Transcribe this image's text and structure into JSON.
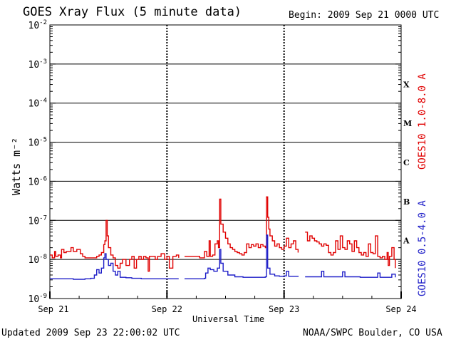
{
  "header": {
    "title": "GOES Xray Flux (5 minute data)",
    "begin": "Begin:  2009 Sep 21 0000 UTC"
  },
  "footer": {
    "updated": "Updated 2009 Sep 23 22:00:02 UTC",
    "credit": "NOAA/SWPC Boulder, CO USA"
  },
  "colors": {
    "long": "#e00000",
    "short": "#1e1ec8"
  },
  "chart_data": {
    "type": "line",
    "title": "GOES Xray Flux (5 minute data)",
    "xlabel": "Universal Time",
    "ylabel": "Watts m⁻²",
    "yscale": "log",
    "ylim": [
      1e-09,
      0.01
    ],
    "xlim": [
      0,
      3
    ],
    "x_units": "days since 2009 Sep 21 0000 UTC",
    "x_ticks": [
      {
        "value": 0,
        "label": "Sep 21"
      },
      {
        "value": 1,
        "label": "Sep 22"
      },
      {
        "value": 2,
        "label": "Sep 23"
      },
      {
        "value": 3,
        "label": "Sep 24"
      }
    ],
    "y_ticks": [
      {
        "value": 1e-09,
        "base": "10",
        "exp": "-9"
      },
      {
        "value": 1e-08,
        "base": "10",
        "exp": "-8"
      },
      {
        "value": 1e-07,
        "base": "10",
        "exp": "-7"
      },
      {
        "value": 1e-06,
        "base": "10",
        "exp": "-6"
      },
      {
        "value": 1e-05,
        "base": "10",
        "exp": "-5"
      },
      {
        "value": 0.0001,
        "base": "10",
        "exp": "-4"
      },
      {
        "value": 0.001,
        "base": "10",
        "exp": "-3"
      },
      {
        "value": 0.01,
        "base": "10",
        "exp": "-2"
      }
    ],
    "class_labels": [
      {
        "label": "A",
        "lower": 1e-08
      },
      {
        "label": "B",
        "lower": 1e-07
      },
      {
        "label": "C",
        "lower": 1e-06
      },
      {
        "label": "M",
        "lower": 1e-05
      },
      {
        "label": "X",
        "lower": 0.0001
      }
    ],
    "grid": true,
    "series": [
      {
        "name": "GOES10 1.0-8.0 A",
        "color": "#e00000",
        "segments": [
          [
            [
              0.0,
              1.3e-08
            ],
            [
              0.02,
              1.1e-08
            ],
            [
              0.04,
              1.6e-08
            ],
            [
              0.05,
              1.2e-08
            ],
            [
              0.07,
              1.3e-08
            ],
            [
              0.09,
              1.1e-08
            ],
            [
              0.1,
              1.8e-08
            ],
            [
              0.12,
              1.5e-08
            ],
            [
              0.14,
              1.6e-08
            ],
            [
              0.16,
              1.6e-08
            ],
            [
              0.18,
              2e-08
            ],
            [
              0.2,
              1.6e-08
            ],
            [
              0.23,
              1.8e-08
            ],
            [
              0.26,
              1.4e-08
            ],
            [
              0.28,
              1.2e-08
            ],
            [
              0.3,
              1.1e-08
            ],
            [
              0.35,
              1.1e-08
            ],
            [
              0.4,
              1.2e-08
            ],
            [
              0.42,
              1.3e-08
            ],
            [
              0.44,
              1.5e-08
            ],
            [
              0.46,
              2.4e-08
            ],
            [
              0.47,
              3e-08
            ],
            [
              0.48,
              1e-07
            ],
            [
              0.49,
              4e-08
            ],
            [
              0.5,
              2e-08
            ],
            [
              0.52,
              1.3e-08
            ],
            [
              0.54,
              1.1e-08
            ],
            [
              0.56,
              7e-09
            ],
            [
              0.58,
              6e-09
            ],
            [
              0.6,
              8e-09
            ],
            [
              0.62,
              1e-08
            ],
            [
              0.65,
              7e-09
            ],
            [
              0.68,
              1e-08
            ],
            [
              0.7,
              1.2e-08
            ],
            [
              0.72,
              6e-09
            ],
            [
              0.74,
              1e-08
            ],
            [
              0.76,
              1.2e-08
            ],
            [
              0.78,
              1e-08
            ],
            [
              0.8,
              1.2e-08
            ],
            [
              0.82,
              1.1e-08
            ],
            [
              0.84,
              5e-09
            ],
            [
              0.85,
              1.2e-08
            ],
            [
              0.88,
              1.2e-08
            ],
            [
              0.9,
              1e-08
            ],
            [
              0.92,
              1.2e-08
            ],
            [
              0.95,
              1.4e-08
            ],
            [
              0.98,
              1e-08
            ],
            [
              1.0,
              1.2e-08
            ],
            [
              1.02,
              6e-09
            ],
            [
              1.05,
              1.2e-08
            ],
            [
              1.08,
              1.3e-08
            ],
            [
              1.1,
              1.1e-08
            ]
          ],
          [
            [
              1.15,
              1.2e-08
            ],
            [
              1.22,
              1.2e-08
            ],
            [
              1.28,
              1.1e-08
            ],
            [
              1.32,
              1.6e-08
            ],
            [
              1.34,
              1.2e-08
            ],
            [
              1.36,
              3e-08
            ],
            [
              1.37,
              1.2e-08
            ],
            [
              1.39,
              1.3e-08
            ],
            [
              1.41,
              2.5e-08
            ],
            [
              1.43,
              3e-08
            ],
            [
              1.44,
              2e-08
            ],
            [
              1.45,
              3.5e-07
            ],
            [
              1.46,
              8e-08
            ],
            [
              1.48,
              5e-08
            ],
            [
              1.5,
              3.5e-08
            ],
            [
              1.52,
              2.5e-08
            ],
            [
              1.54,
              2e-08
            ],
            [
              1.56,
              1.8e-08
            ],
            [
              1.58,
              1.6e-08
            ],
            [
              1.6,
              1.5e-08
            ],
            [
              1.62,
              1.4e-08
            ],
            [
              1.64,
              1.3e-08
            ],
            [
              1.66,
              1.5e-08
            ],
            [
              1.68,
              2.5e-08
            ],
            [
              1.7,
              2e-08
            ],
            [
              1.72,
              2.4e-08
            ],
            [
              1.74,
              2.2e-08
            ],
            [
              1.76,
              2.5e-08
            ],
            [
              1.78,
              2e-08
            ],
            [
              1.8,
              2.4e-08
            ],
            [
              1.82,
              2.2e-08
            ],
            [
              1.84,
              2e-08
            ],
            [
              1.85,
              4e-07
            ],
            [
              1.86,
              1.2e-07
            ],
            [
              1.87,
              6e-08
            ],
            [
              1.88,
              4e-08
            ],
            [
              1.9,
              3e-08
            ],
            [
              1.92,
              2.2e-08
            ],
            [
              1.94,
              2.5e-08
            ],
            [
              1.96,
              2e-08
            ],
            [
              1.98,
              1.8e-08
            ],
            [
              2.0,
              2.2e-08
            ],
            [
              2.02,
              3.5e-08
            ],
            [
              2.04,
              2e-08
            ],
            [
              2.06,
              2.5e-08
            ],
            [
              2.08,
              3e-08
            ],
            [
              2.1,
              1.8e-08
            ],
            [
              2.12,
              1.5e-08
            ]
          ],
          [
            [
              2.18,
              5e-08
            ],
            [
              2.2,
              3e-08
            ],
            [
              2.22,
              4e-08
            ],
            [
              2.24,
              3.5e-08
            ],
            [
              2.26,
              3e-08
            ],
            [
              2.28,
              2.8e-08
            ],
            [
              2.3,
              2.5e-08
            ],
            [
              2.32,
              2.2e-08
            ],
            [
              2.34,
              2.5e-08
            ],
            [
              2.36,
              2.3e-08
            ],
            [
              2.38,
              1.5e-08
            ],
            [
              2.4,
              1.3e-08
            ],
            [
              2.42,
              1.5e-08
            ],
            [
              2.44,
              3e-08
            ],
            [
              2.46,
              1.8e-08
            ],
            [
              2.48,
              4e-08
            ],
            [
              2.5,
              2e-08
            ],
            [
              2.52,
              1.8e-08
            ],
            [
              2.54,
              3e-08
            ],
            [
              2.56,
              2.5e-08
            ],
            [
              2.58,
              1.6e-08
            ],
            [
              2.6,
              3e-08
            ],
            [
              2.62,
              2e-08
            ],
            [
              2.64,
              1.5e-08
            ],
            [
              2.66,
              1.3e-08
            ],
            [
              2.68,
              1.5e-08
            ],
            [
              2.7,
              1.2e-08
            ],
            [
              2.72,
              2.5e-08
            ],
            [
              2.74,
              1.5e-08
            ],
            [
              2.76,
              1.4e-08
            ],
            [
              2.78,
              4e-08
            ],
            [
              2.8,
              1.2e-08
            ],
            [
              2.82,
              1.1e-08
            ],
            [
              2.84,
              1.2e-08
            ],
            [
              2.86,
              1e-08
            ],
            [
              2.88,
              1.5e-08
            ],
            [
              2.89,
              7e-09
            ],
            [
              2.9,
              1.2e-08
            ],
            [
              2.92,
              2e-08
            ],
            [
              2.94,
              1e-08
            ],
            [
              2.95,
              6e-09
            ]
          ]
        ]
      },
      {
        "name": "GOES10 0.5-4.0 A",
        "color": "#1e1ec8",
        "segments": [
          [
            [
              0.0,
              3.2e-09
            ],
            [
              0.1,
              3.2e-09
            ],
            [
              0.2,
              3.1e-09
            ],
            [
              0.3,
              3.2e-09
            ],
            [
              0.35,
              3.3e-09
            ],
            [
              0.38,
              4e-09
            ],
            [
              0.4,
              5.5e-09
            ],
            [
              0.42,
              4.5e-09
            ],
            [
              0.44,
              6e-09
            ],
            [
              0.46,
              1.1e-08
            ],
            [
              0.47,
              1.4e-08
            ],
            [
              0.48,
              1e-08
            ],
            [
              0.5,
              7e-09
            ],
            [
              0.52,
              8e-09
            ],
            [
              0.54,
              5e-09
            ],
            [
              0.56,
              4e-09
            ],
            [
              0.58,
              5e-09
            ],
            [
              0.6,
              3.5e-09
            ],
            [
              0.65,
              3.4e-09
            ],
            [
              0.7,
              3.3e-09
            ],
            [
              0.78,
              3.2e-09
            ],
            [
              0.85,
              3.2e-09
            ],
            [
              0.95,
              3.2e-09
            ],
            [
              1.05,
              3.2e-09
            ],
            [
              1.1,
              3.2e-09
            ]
          ],
          [
            [
              1.15,
              3.2e-09
            ],
            [
              1.25,
              3.2e-09
            ],
            [
              1.32,
              3.3e-09
            ],
            [
              1.33,
              4.5e-09
            ],
            [
              1.35,
              6e-09
            ],
            [
              1.37,
              5.5e-09
            ],
            [
              1.4,
              5e-09
            ],
            [
              1.43,
              6e-09
            ],
            [
              1.45,
              1.8e-08
            ],
            [
              1.46,
              8e-09
            ],
            [
              1.48,
              5e-09
            ],
            [
              1.52,
              4e-09
            ],
            [
              1.58,
              3.6e-09
            ],
            [
              1.65,
              3.5e-09
            ],
            [
              1.72,
              3.5e-09
            ],
            [
              1.8,
              3.5e-09
            ],
            [
              1.84,
              3.6e-09
            ],
            [
              1.85,
              4.2e-08
            ],
            [
              1.86,
              6e-09
            ],
            [
              1.88,
              4.2e-09
            ],
            [
              1.92,
              3.8e-09
            ],
            [
              1.96,
              3.7e-09
            ],
            [
              2.0,
              3.8e-09
            ],
            [
              2.02,
              5e-09
            ],
            [
              2.04,
              3.7e-09
            ],
            [
              2.08,
              3.7e-09
            ],
            [
              2.12,
              3.6e-09
            ]
          ],
          [
            [
              2.18,
              3.6e-09
            ],
            [
              2.3,
              3.6e-09
            ],
            [
              2.32,
              5e-09
            ],
            [
              2.34,
              3.6e-09
            ],
            [
              2.48,
              3.6e-09
            ],
            [
              2.5,
              4.8e-09
            ],
            [
              2.52,
              3.6e-09
            ],
            [
              2.65,
              3.5e-09
            ],
            [
              2.78,
              3.5e-09
            ],
            [
              2.8,
              4.5e-09
            ],
            [
              2.82,
              3.5e-09
            ],
            [
              2.9,
              3.5e-09
            ],
            [
              2.92,
              4.2e-09
            ],
            [
              2.95,
              3.5e-09
            ]
          ]
        ]
      }
    ]
  }
}
